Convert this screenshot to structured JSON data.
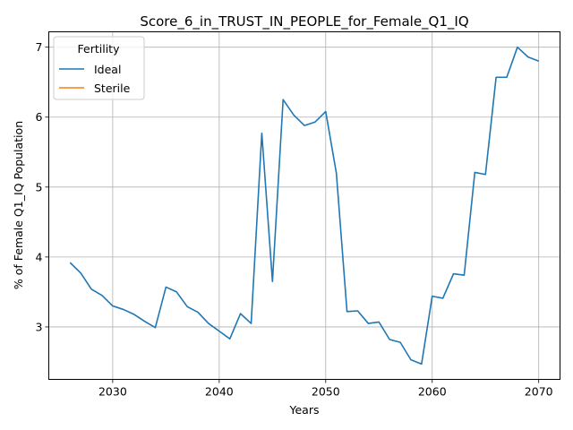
{
  "chart_data": {
    "type": "line",
    "title": "Score_6_in_TRUST_IN_PEOPLE_for_Female_Q1_IQ",
    "xlabel": "Years",
    "ylabel": "% of Female Q1_IQ Population",
    "xlim": [
      2024,
      2072
    ],
    "ylim": [
      2.25,
      7.22
    ],
    "xticks": [
      2030,
      2040,
      2050,
      2060,
      2070
    ],
    "yticks": [
      3,
      4,
      5,
      6,
      7
    ],
    "grid": true,
    "legend": {
      "title": "Fertility",
      "placement": "top-left"
    },
    "series": [
      {
        "name": "Ideal",
        "color": "#1f77b4",
        "x": [
          2026,
          2027,
          2028,
          2029,
          2030,
          2031,
          2032,
          2033,
          2034,
          2035,
          2036,
          2037,
          2038,
          2039,
          2040,
          2041,
          2042,
          2043,
          2044,
          2045,
          2046,
          2047,
          2048,
          2049,
          2050,
          2051,
          2052,
          2053,
          2054,
          2055,
          2056,
          2057,
          2058,
          2059,
          2060,
          2061,
          2062,
          2063,
          2064,
          2065,
          2066,
          2067,
          2068,
          2069,
          2070
        ],
        "y": [
          3.92,
          3.77,
          3.54,
          3.45,
          3.3,
          3.25,
          3.18,
          3.08,
          2.99,
          3.57,
          3.5,
          3.29,
          3.21,
          3.05,
          2.94,
          2.83,
          3.19,
          3.05,
          5.77,
          3.65,
          6.25,
          6.03,
          5.88,
          5.93,
          6.08,
          5.2,
          3.22,
          3.23,
          3.05,
          3.07,
          2.82,
          2.78,
          2.53,
          2.47,
          3.44,
          3.41,
          3.76,
          3.74,
          5.21,
          5.18,
          6.57,
          6.57,
          7.0,
          6.86,
          6.8
        ]
      },
      {
        "name": "Sterile",
        "color": "#ff7f0e",
        "x": [],
        "y": []
      }
    ]
  }
}
